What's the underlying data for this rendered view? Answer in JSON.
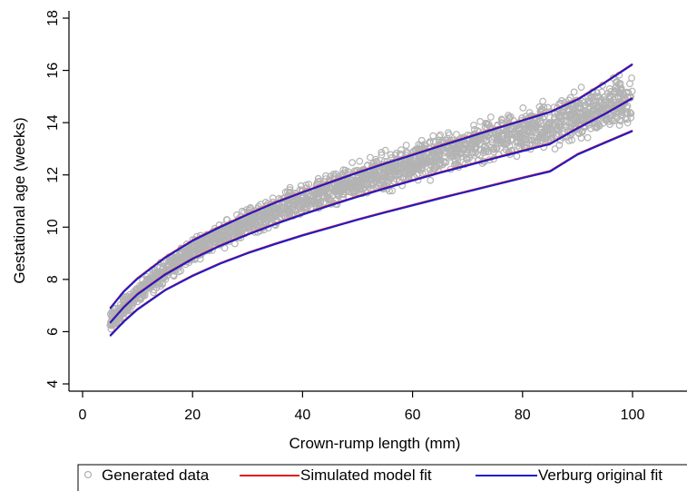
{
  "chart_data": {
    "type": "scatter",
    "title": "",
    "xlabel": "Crown-rump length (mm)",
    "ylabel": "Gestational age (weeks)",
    "xlim": [
      -2,
      110
    ],
    "ylim": [
      3.5,
      18.5
    ],
    "x_ticks": [
      0,
      20,
      40,
      60,
      80,
      100
    ],
    "y_ticks": [
      4,
      6,
      8,
      10,
      12,
      14,
      16,
      18
    ],
    "grid": false,
    "legend_position": "bottom",
    "scatter_series": {
      "name": "Generated data",
      "color": "#b3b3b3",
      "x_range": [
        5,
        100
      ],
      "band_lower": [
        5.8,
        6.92,
        7.95,
        8.65,
        9.2,
        9.68,
        10.1,
        10.5,
        10.86,
        11.2,
        11.53,
        11.85,
        12.15,
        12.43,
        12.71,
        12.97,
        13.23,
        13.45
      ],
      "band_upper": [
        7.0,
        8.15,
        9.15,
        9.95,
        10.6,
        11.18,
        11.7,
        12.2,
        12.65,
        13.08,
        13.5,
        13.9,
        14.3,
        14.68,
        15.05,
        15.45,
        15.85,
        16.25
      ]
    },
    "x": [
      5,
      7.5,
      10,
      15,
      20,
      25,
      30,
      35,
      40,
      45,
      50,
      55,
      60,
      65,
      70,
      75,
      80,
      85,
      90,
      95,
      100
    ],
    "series": [
      {
        "name": "Simulated model fit",
        "color": "#e31a1c",
        "role": "upper",
        "values": [
          6.9,
          7.55,
          8.05,
          8.85,
          9.5,
          10.02,
          10.5,
          10.95,
          11.35,
          11.73,
          12.1,
          12.45,
          12.78,
          13.12,
          13.45,
          13.78,
          14.1,
          14.42,
          14.9,
          15.55,
          16.25
        ]
      },
      {
        "name": "Simulated model fit",
        "color": "#e31a1c",
        "role": "median",
        "values": [
          6.35,
          6.95,
          7.45,
          8.2,
          8.8,
          9.3,
          9.73,
          10.13,
          10.5,
          10.85,
          11.18,
          11.5,
          11.8,
          12.1,
          12.38,
          12.66,
          12.93,
          13.2,
          13.8,
          14.35,
          14.95
        ]
      },
      {
        "name": "Simulated model fit",
        "color": "#e31a1c",
        "role": "lower",
        "values": [
          5.85,
          6.4,
          6.87,
          7.6,
          8.15,
          8.62,
          9.02,
          9.37,
          9.7,
          10.0,
          10.3,
          10.58,
          10.85,
          11.12,
          11.38,
          11.64,
          11.9,
          12.15,
          12.8,
          13.25,
          13.7
        ]
      },
      {
        "name": "Verburg original fit",
        "color": "#1c1ccc",
        "role": "upper",
        "values": [
          6.88,
          7.53,
          8.03,
          8.83,
          9.48,
          10.0,
          10.48,
          10.93,
          11.33,
          11.71,
          12.08,
          12.43,
          12.76,
          13.1,
          13.43,
          13.76,
          14.08,
          14.4,
          14.88,
          15.53,
          16.23
        ]
      },
      {
        "name": "Verburg original fit",
        "color": "#1c1ccc",
        "role": "median",
        "values": [
          6.33,
          6.93,
          7.43,
          8.18,
          8.78,
          9.28,
          9.71,
          10.11,
          10.48,
          10.83,
          11.16,
          11.48,
          11.78,
          12.08,
          12.36,
          12.64,
          12.91,
          13.18,
          13.78,
          14.33,
          14.93
        ]
      },
      {
        "name": "Verburg original fit",
        "color": "#1c1ccc",
        "role": "lower",
        "values": [
          5.83,
          6.38,
          6.85,
          7.58,
          8.13,
          8.6,
          9.0,
          9.35,
          9.68,
          9.98,
          10.28,
          10.56,
          10.83,
          11.1,
          11.36,
          11.62,
          11.88,
          12.13,
          12.78,
          13.23,
          13.68
        ]
      }
    ]
  }
}
